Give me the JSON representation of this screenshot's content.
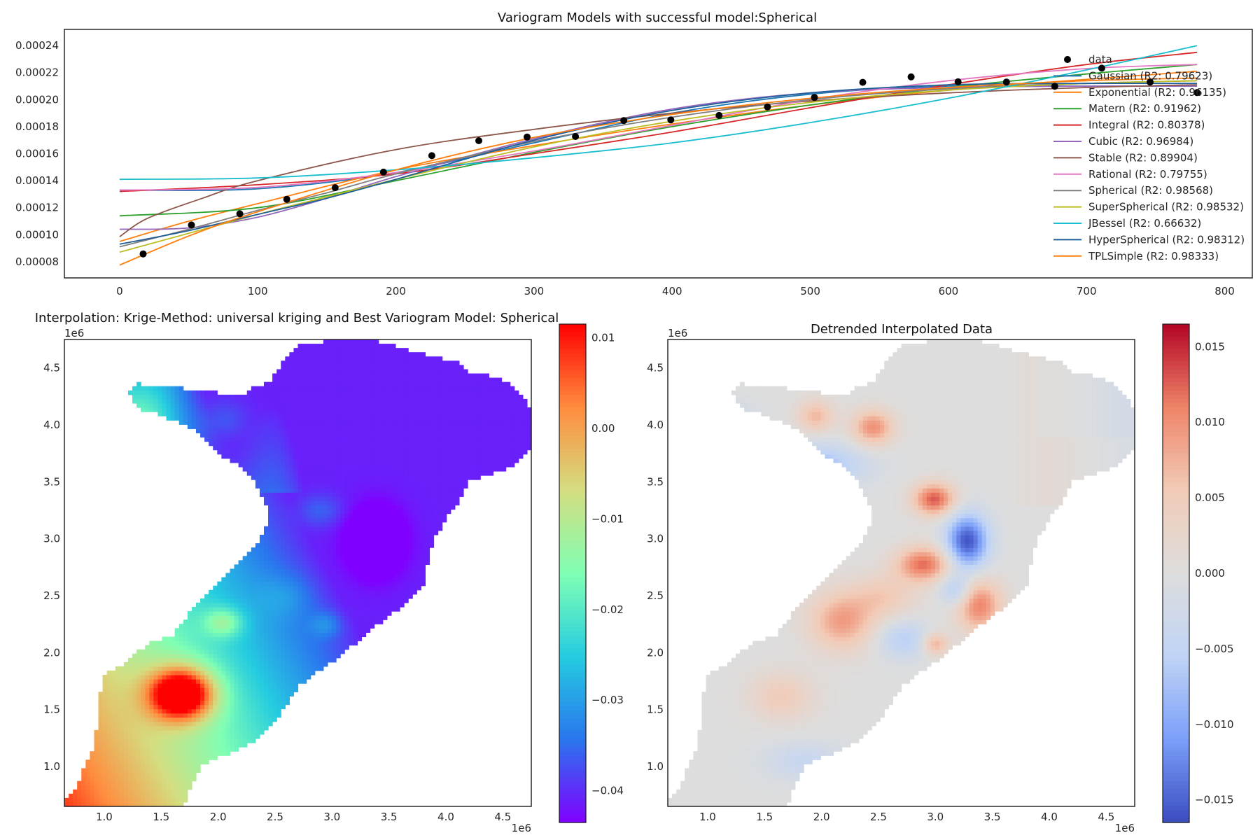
{
  "chart_data": [
    {
      "type": "line",
      "title": "Variogram Models with successful model:Spherical",
      "xlabel": "",
      "ylabel": "",
      "xlim": [
        -40,
        820
      ],
      "ylim": [
        6.8e-05,
        0.000252
      ],
      "xticks": [
        "0",
        "100",
        "200",
        "300",
        "400",
        "500",
        "600",
        "700",
        "800"
      ],
      "xtick_values": [
        0,
        100,
        200,
        300,
        400,
        500,
        600,
        700,
        800
      ],
      "yticks": [
        "0.00008",
        "0.00010",
        "0.00012",
        "0.00014",
        "0.00016",
        "0.00018",
        "0.00020",
        "0.00022",
        "0.00024"
      ],
      "ytick_values": [
        8e-05,
        0.0001,
        0.00012,
        0.00014,
        0.00016,
        0.00018,
        0.0002,
        0.00022,
        0.00024
      ],
      "grid": false,
      "legend": "right",
      "scatter": {
        "name": "data",
        "color": "#000000",
        "x": [
          17,
          52,
          87,
          121,
          156,
          191,
          226,
          260,
          295,
          330,
          365,
          399,
          434,
          469,
          503,
          538,
          573,
          607,
          642,
          677,
          711,
          746,
          780
        ],
        "y": [
          8.58e-05,
          0.0001072,
          0.0001155,
          0.0001262,
          0.0001348,
          0.0001463,
          0.0001585,
          0.0001696,
          0.0001723,
          0.0001727,
          0.0001845,
          0.000185,
          0.0001883,
          0.0001946,
          0.0002016,
          0.0002128,
          0.0002168,
          0.0002132,
          0.000213,
          0.0002099,
          0.0002233,
          0.000213,
          0.0002052
        ]
      },
      "series": [
        {
          "name": "Gaussian (R2: 0.79623)",
          "color": "#1f77b4",
          "x": [
            0,
            100,
            200,
            300,
            400,
            500,
            600,
            700,
            780
          ],
          "values": [
            0.000133,
            0.000134,
            0.000146,
            0.000168,
            0.00019,
            0.000204,
            0.00021,
            0.00021,
            0.00021
          ]
        },
        {
          "name": "Exponential (R2: 0.96135)",
          "color": "#ff7f0e",
          "x": [
            0,
            50,
            100,
            200,
            300,
            400,
            500,
            600,
            700,
            780
          ],
          "values": [
            9.5e-05,
            0.00011,
            0.000123,
            0.000148,
            0.000166,
            0.000182,
            0.000196,
            0.000207,
            0.000215,
            0.000221
          ]
        },
        {
          "name": "Matern (R2: 0.91962)",
          "color": "#2ca02c",
          "x": [
            0,
            100,
            200,
            300,
            400,
            500,
            600,
            700,
            780
          ],
          "values": [
            0.000114,
            0.00012,
            0.00014,
            0.000161,
            0.00018,
            0.000196,
            0.000209,
            0.000219,
            0.000226
          ]
        },
        {
          "name": "Integral (R2: 0.80378)",
          "color": "#d62728",
          "x": [
            0,
            100,
            200,
            300,
            400,
            500,
            600,
            700,
            780
          ],
          "values": [
            0.000132,
            0.000137,
            0.000145,
            0.00016,
            0.000176,
            0.000194,
            0.000211,
            0.000226,
            0.000235
          ]
        },
        {
          "name": "Cubic (R2: 0.96984)",
          "color": "#9467bd",
          "x": [
            0,
            50,
            100,
            150,
            200,
            300,
            400,
            500,
            600,
            700,
            780
          ],
          "values": [
            0.000104,
            0.000105,
            0.000113,
            0.000127,
            0.000143,
            0.000171,
            0.000193,
            0.000205,
            0.000209,
            0.00021,
            0.00021
          ]
        },
        {
          "name": "Stable (R2: 0.89904)",
          "color": "#8c564b",
          "x": [
            0,
            20,
            60,
            100,
            200,
            300,
            400,
            500,
            600,
            700,
            780
          ],
          "values": [
            9.85e-05,
            0.000112,
            0.000127,
            0.00014,
            0.000163,
            0.000178,
            0.00019,
            0.000199,
            0.000205,
            0.000209,
            0.000211
          ]
        },
        {
          "name": "Rational (R2: 0.79755)",
          "color": "#e377c2",
          "x": [
            0,
            100,
            200,
            300,
            400,
            500,
            600,
            700,
            780
          ],
          "values": [
            0.000133,
            0.000135,
            0.000146,
            0.000162,
            0.000181,
            0.0002,
            0.000214,
            0.000223,
            0.000226
          ]
        },
        {
          "name": "Spherical (R2: 0.98568)",
          "color": "#7f7f7f",
          "x": [
            0,
            50,
            100,
            150,
            200,
            300,
            400,
            500,
            600,
            700,
            780
          ],
          "values": [
            9.1e-05,
            0.000104,
            0.000118,
            0.000131,
            0.000145,
            0.000169,
            0.000187,
            0.0002,
            0.000208,
            0.000212,
            0.000214
          ]
        },
        {
          "name": "SuperSpherical (R2: 0.98532)",
          "color": "#bcbd22",
          "x": [
            0,
            50,
            100,
            150,
            200,
            300,
            400,
            500,
            600,
            700,
            780
          ],
          "values": [
            8.7e-05,
            0.000101,
            0.000115,
            0.000128,
            0.000141,
            0.000165,
            0.000184,
            0.000198,
            0.000207,
            0.000212,
            0.000214
          ]
        },
        {
          "name": "JBessel (R2: 0.66632)",
          "color": "#17becf",
          "x": [
            0,
            100,
            200,
            300,
            400,
            500,
            600,
            700,
            780
          ],
          "values": [
            0.000141,
            0.000142,
            0.000148,
            0.000157,
            0.000168,
            0.000183,
            0.000201,
            0.000222,
            0.00024
          ]
        },
        {
          "name": "HyperSpherical (R2: 0.98312)",
          "color": "#1f5f99",
          "x": [
            0,
            50,
            100,
            150,
            200,
            300,
            400,
            500,
            600,
            700,
            780
          ],
          "values": [
            9.3e-05,
            0.000103,
            0.000115,
            0.000127,
            0.000141,
            0.00017,
            0.000192,
            0.000205,
            0.000211,
            0.000212,
            0.000212
          ]
        },
        {
          "name": "TPLSimple (R2: 0.98333)",
          "color": "#ff7f0e",
          "x": [
            0,
            50,
            100,
            200,
            300,
            400,
            500,
            600,
            700,
            780
          ],
          "values": [
            7.75e-05,
            9.9e-05,
            0.000117,
            0.000148,
            0.000172,
            0.000189,
            0.000201,
            0.000209,
            0.000214,
            0.000216
          ]
        }
      ]
    },
    {
      "type": "heatmap",
      "title": "Interpolation: Krige-Method: universal kriging and Best Variogram Model: Spherical",
      "colormap": "rainbow",
      "colormap_stops": [
        "#8000ff",
        "#2a76ee",
        "#25cce0",
        "#80ffb4",
        "#d4dd80",
        "#ff8c3e",
        "#ff0000"
      ],
      "xlim": [
        0.65,
        4.75
      ],
      "ylim": [
        0.65,
        4.75
      ],
      "xticks": [
        "1.0",
        "1.5",
        "2.0",
        "2.5",
        "3.0",
        "3.5",
        "4.0",
        "4.5"
      ],
      "xtick_values": [
        1.0,
        1.5,
        2.0,
        2.5,
        3.0,
        3.5,
        4.0,
        4.5
      ],
      "yticks": [
        "1.0",
        "1.5",
        "2.0",
        "2.5",
        "3.0",
        "3.5",
        "4.0",
        "4.5"
      ],
      "ytick_values": [
        1.0,
        1.5,
        2.0,
        2.5,
        3.0,
        3.5,
        4.0,
        4.5
      ],
      "x_offset_label": "1e6",
      "y_offset_label": "1e6",
      "clim": [
        -0.0435,
        0.0115
      ],
      "colorbar_ticks": [
        "0.01",
        "0.00",
        "−0.01",
        "−0.02",
        "−0.03",
        "−0.04"
      ],
      "colorbar_tick_values": [
        0.01,
        0.0,
        -0.01,
        -0.02,
        -0.03,
        -0.04
      ],
      "blobs": [
        {
          "x": 1.68,
          "y": 1.64,
          "sx": 0.2,
          "sy": 0.16,
          "a": 0.04
        },
        {
          "x": 2.05,
          "y": 2.27,
          "sx": 0.12,
          "sy": 0.09,
          "a": 0.012
        },
        {
          "x": 3.38,
          "y": 2.98,
          "sx": 0.17,
          "sy": 0.2,
          "a": -0.012
        },
        {
          "x": 1.28,
          "y": 4.08,
          "sx": 0.22,
          "sy": 0.16,
          "a": 0.006
        },
        {
          "x": 2.05,
          "y": 4.05,
          "sx": 0.15,
          "sy": 0.12,
          "a": 0.004
        },
        {
          "x": 2.9,
          "y": 3.25,
          "sx": 0.14,
          "sy": 0.1,
          "a": 0.005
        },
        {
          "x": 2.6,
          "y": 2.5,
          "sx": 0.18,
          "sy": 0.14,
          "a": 0.004
        },
        {
          "x": 2.95,
          "y": 2.25,
          "sx": 0.1,
          "sy": 0.08,
          "a": 0.006
        }
      ]
    },
    {
      "type": "heatmap",
      "title": "Detrended Interpolated Data",
      "colormap": "coolwarm",
      "colormap_stops": [
        "#3b4cc0",
        "#7b9ff9",
        "#c0d4f5",
        "#dddddd",
        "#f2cbb7",
        "#ee8468",
        "#b40426"
      ],
      "xlim": [
        0.65,
        4.75
      ],
      "ylim": [
        0.65,
        4.75
      ],
      "xticks": [
        "1.0",
        "1.5",
        "2.0",
        "2.5",
        "3.0",
        "3.5",
        "4.0",
        "4.5"
      ],
      "xtick_values": [
        1.0,
        1.5,
        2.0,
        2.5,
        3.0,
        3.5,
        4.0,
        4.5
      ],
      "yticks": [
        "1.0",
        "1.5",
        "2.0",
        "2.5",
        "3.0",
        "3.5",
        "4.0",
        "4.5"
      ],
      "ytick_values": [
        1.0,
        1.5,
        2.0,
        2.5,
        3.0,
        3.5,
        4.0,
        4.5
      ],
      "x_offset_label": "1e6",
      "y_offset_label": "1e6",
      "clim": [
        -0.0165,
        0.0165
      ],
      "colorbar_ticks": [
        "0.015",
        "0.010",
        "0.005",
        "0.000",
        "−0.005",
        "−0.010",
        "−0.015"
      ],
      "colorbar_tick_values": [
        0.015,
        0.01,
        0.005,
        0.0,
        -0.005,
        -0.01,
        -0.015
      ],
      "blobs": [
        {
          "x": 2.45,
          "y": 3.98,
          "sx": 0.13,
          "sy": 0.11,
          "a": 0.01
        },
        {
          "x": 1.95,
          "y": 4.08,
          "sx": 0.11,
          "sy": 0.1,
          "a": 0.007
        },
        {
          "x": 1.15,
          "y": 4.0,
          "sx": 0.16,
          "sy": 0.12,
          "a": -0.007
        },
        {
          "x": 1.95,
          "y": 3.65,
          "sx": 0.3,
          "sy": 0.13,
          "a": -0.008
        },
        {
          "x": 2.99,
          "y": 3.35,
          "sx": 0.13,
          "sy": 0.1,
          "a": 0.013
        },
        {
          "x": 3.28,
          "y": 2.98,
          "sx": 0.13,
          "sy": 0.17,
          "a": -0.016
        },
        {
          "x": 2.9,
          "y": 2.78,
          "sx": 0.17,
          "sy": 0.11,
          "a": 0.012
        },
        {
          "x": 3.38,
          "y": 2.42,
          "sx": 0.14,
          "sy": 0.16,
          "a": 0.011
        },
        {
          "x": 2.18,
          "y": 2.28,
          "sx": 0.2,
          "sy": 0.18,
          "a": 0.009
        },
        {
          "x": 3.0,
          "y": 2.08,
          "sx": 0.08,
          "sy": 0.07,
          "a": 0.008
        },
        {
          "x": 2.72,
          "y": 2.12,
          "sx": 0.16,
          "sy": 0.12,
          "a": -0.006
        },
        {
          "x": 3.18,
          "y": 2.55,
          "sx": 0.1,
          "sy": 0.1,
          "a": -0.007
        },
        {
          "x": 1.65,
          "y": 1.62,
          "sx": 0.2,
          "sy": 0.15,
          "a": 0.005
        },
        {
          "x": 1.85,
          "y": 1.05,
          "sx": 0.25,
          "sy": 0.12,
          "a": -0.004
        },
        {
          "x": 2.55,
          "y": 2.5,
          "sx": 0.2,
          "sy": 0.14,
          "a": 0.005
        }
      ]
    }
  ]
}
